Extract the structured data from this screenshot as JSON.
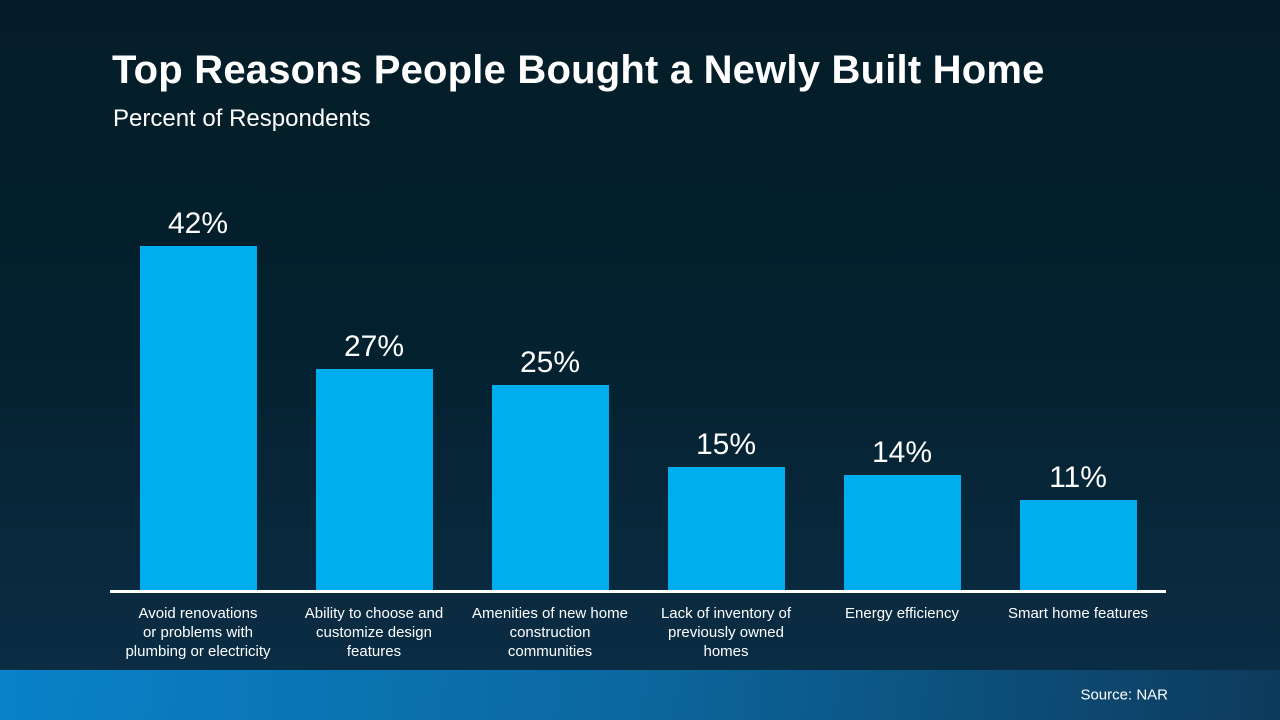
{
  "title": "Top Reasons People Bought a Newly Built Home",
  "subtitle": "Percent of Respondents",
  "source": "Source: NAR",
  "colors": {
    "bar": "#00AEEF",
    "bg_top": "#051D28",
    "bg_bottom": "#0B2D44",
    "footer_left": "#0982CA",
    "footer_right": "#0D3A5C",
    "axis": "#FFFFFF",
    "text": "#FFFFFF"
  },
  "chart_data": {
    "type": "bar",
    "title": "Top Reasons People Bought a Newly Built Home",
    "ylabel": "Percent of Respondents",
    "xlabel": "",
    "ylim": [
      0,
      45
    ],
    "grid": false,
    "legend": null,
    "categories": [
      "Avoid renovations or problems with plumbing or electricity",
      "Ability to choose and customize design features",
      "Amenities of new home construction communities",
      "Lack of inventory of previously owned homes",
      "Energy efficiency",
      "Smart home features"
    ],
    "display_labels": [
      "Avoid renovations\nor problems with\nplumbing or electricity",
      "Ability to choose and\ncustomize design\nfeatures",
      "Amenities of new home\nconstruction\ncommunities",
      "Lack of inventory of\npreviously owned\nhomes",
      "Energy efficiency",
      "Smart home features"
    ],
    "values": [
      42,
      27,
      25,
      15,
      14,
      11
    ],
    "value_labels": [
      "42%",
      "27%",
      "25%",
      "15%",
      "14%",
      "11%"
    ]
  }
}
